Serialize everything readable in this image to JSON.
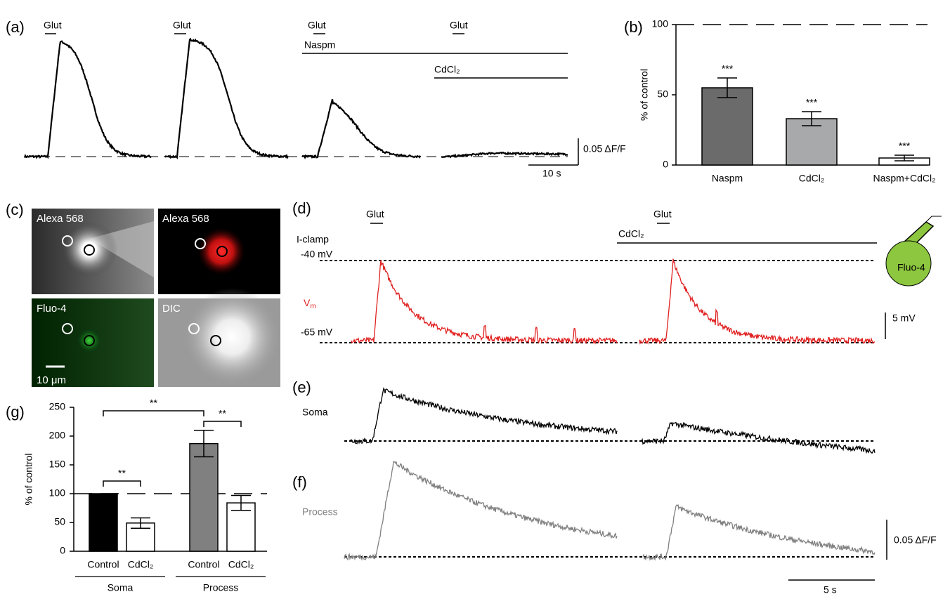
{
  "panel_labels": [
    "(a)",
    "(b)",
    "(c)",
    "(d)",
    "(e)",
    "(f)",
    "(g)"
  ],
  "a": {
    "glut": [
      "Glut",
      "Glut",
      "Glut",
      "Glut"
    ],
    "naspm": "Naspm",
    "cdcl2": "CdCl₂",
    "scale_y": "0.05 ΔF/F",
    "scale_x": "10 s"
  },
  "c": {
    "images": [
      "Alexa 568",
      "Alexa 568",
      "Fluo-4",
      "DIC"
    ],
    "scale": "10 μm"
  },
  "d": {
    "glut": [
      "Glut",
      "Glut"
    ],
    "cdcl2": "CdCl₂",
    "mode": "I-clamp",
    "v_high": "-40 mV",
    "v_low": "-65 mV",
    "vm": {
      "main": "V",
      "sub": "m"
    },
    "scale": "5 mV",
    "pipette": "Fluo-4"
  },
  "e": {
    "label": "Soma"
  },
  "f": {
    "label": "Process",
    "scale_y": "0.05 ΔF/F",
    "scale_x": "5 s"
  },
  "chart_data": [
    {
      "type": "bar",
      "ylabel": "% of control",
      "categories": [
        "Naspm",
        "CdCl₂",
        "Naspm+CdCl₂"
      ],
      "values": [
        55,
        33,
        5
      ],
      "errors": [
        7,
        5,
        2
      ],
      "colors": [
        "#6b6b6b",
        "#a8a9ab",
        "#ffffff"
      ],
      "annotations": [
        "***",
        "***",
        "***"
      ],
      "reference": 100,
      "ylim": [
        0,
        100
      ],
      "yticks": [
        0,
        50,
        100
      ]
    },
    {
      "type": "bar",
      "ylabel": "% of control",
      "categories": [
        "Control",
        "CdCl₂",
        "Control",
        "CdCl₂"
      ],
      "groups": [
        "Soma",
        "Process"
      ],
      "values": [
        100,
        49,
        187,
        84
      ],
      "errors": [
        0,
        9,
        23,
        13
      ],
      "colors": [
        "#000000",
        "#ffffff",
        "#808080",
        "#ffffff"
      ],
      "significance": [
        "**",
        "**",
        "**"
      ],
      "reference": 100,
      "ylim": [
        0,
        250
      ],
      "yticks": [
        0,
        50,
        100,
        150,
        200,
        250
      ]
    }
  ]
}
